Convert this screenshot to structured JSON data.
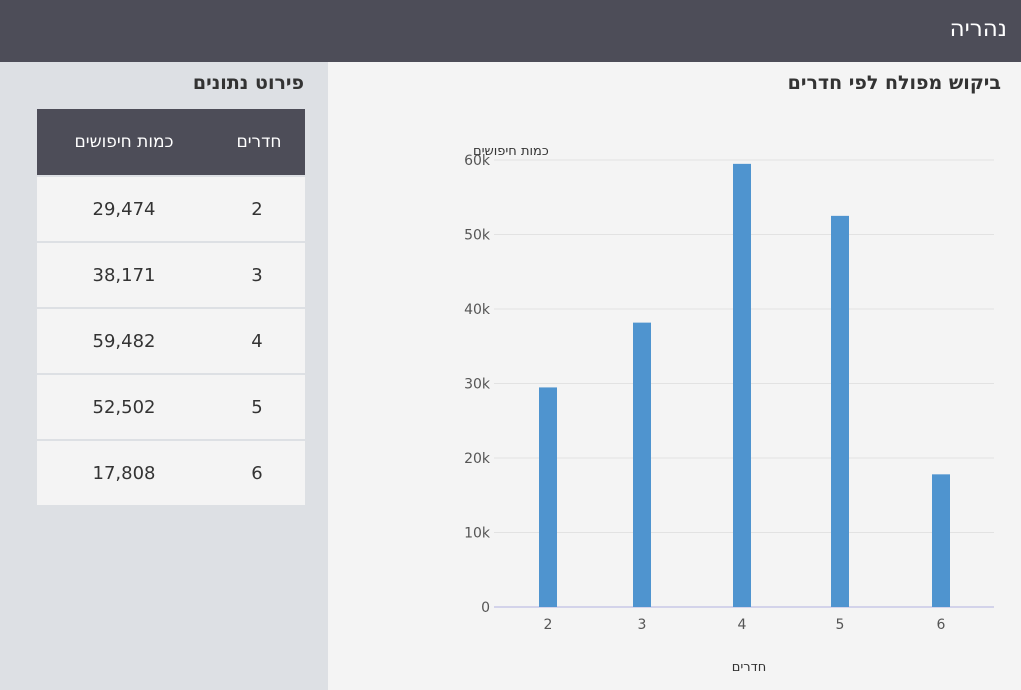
{
  "header": {
    "title": "נהריה"
  },
  "sidebar": {
    "title": "פירוט נתונים",
    "table": {
      "columns": [
        "חדרים",
        "כמות חיפושים"
      ],
      "rows": [
        {
          "rooms": "2",
          "searches": "29,474"
        },
        {
          "rooms": "3",
          "searches": "38,171"
        },
        {
          "rooms": "4",
          "searches": "59,482"
        },
        {
          "rooms": "5",
          "searches": "52,502"
        },
        {
          "rooms": "6",
          "searches": "17,808"
        }
      ]
    }
  },
  "chart_data": {
    "type": "bar",
    "title": "ביקוש מפולח לפי חדרים",
    "xlabel": "חדרים",
    "ylabel": "כמות חיפושים",
    "categories": [
      "2",
      "3",
      "4",
      "5",
      "6"
    ],
    "values": [
      29474,
      38171,
      59482,
      52502,
      17808
    ],
    "ylim": [
      0,
      60000
    ],
    "yticks": [
      0,
      10000,
      20000,
      30000,
      40000,
      50000,
      60000
    ],
    "ytick_labels": [
      "0",
      "10k",
      "20k",
      "30k",
      "40k",
      "50k",
      "60k"
    ],
    "grid": true,
    "bar_color": "#4f94cf",
    "grid_color": "#e2e2e2",
    "axis_color": "#c8c8e6"
  },
  "colors": {
    "header_bg": "#4d4d58",
    "sidebar_bg": "#dde0e4",
    "content_bg": "#f4f4f4"
  }
}
